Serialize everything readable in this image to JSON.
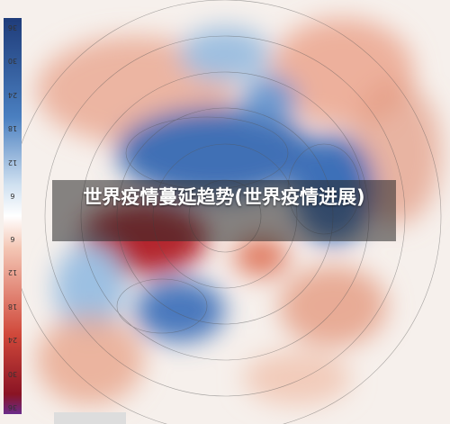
{
  "title": "世界疫情蔓延趋势(世界疫情进展)",
  "colorbar": {
    "labels": [
      "36",
      "30",
      "24",
      "18",
      "12",
      "6",
      "6",
      "12",
      "18",
      "24",
      "30",
      "36"
    ]
  }
}
